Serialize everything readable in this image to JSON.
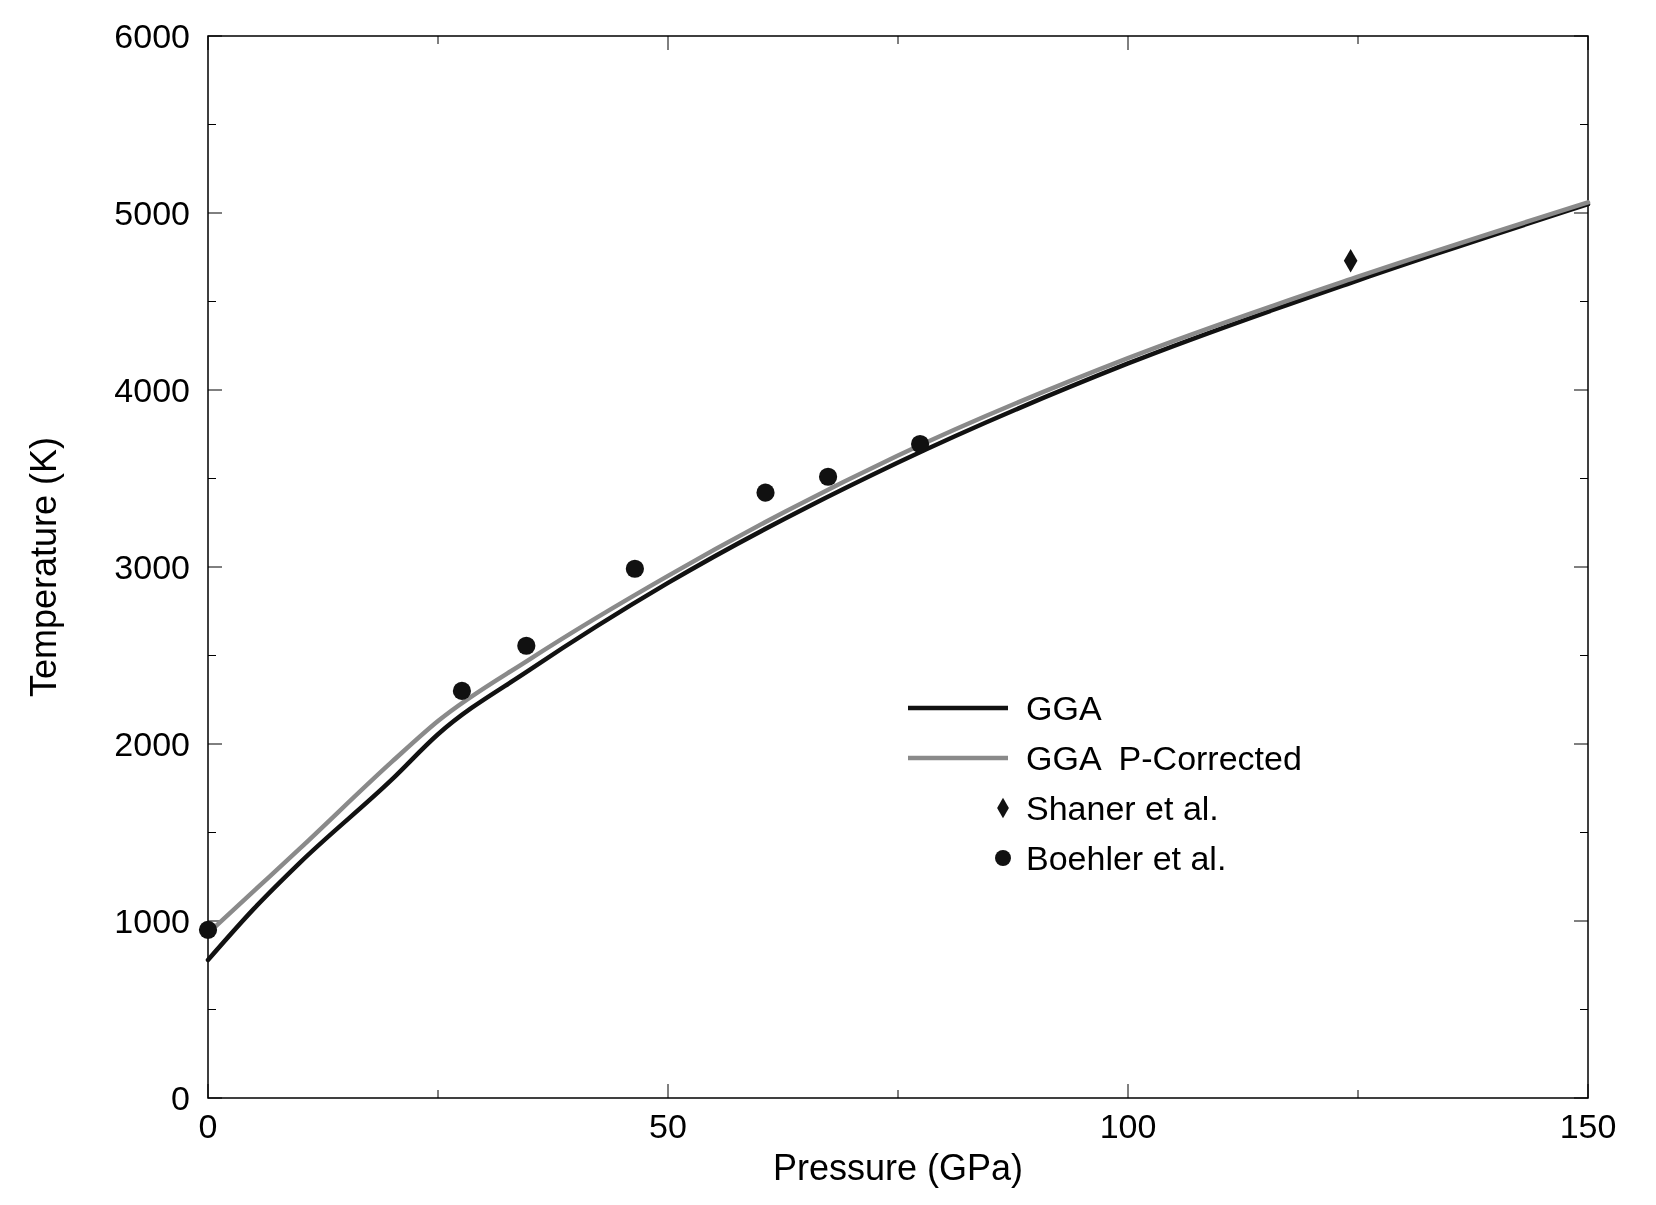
{
  "chart_data": {
    "type": "line",
    "xlabel": "Pressure (GPa)",
    "ylabel": "Temperature (K)",
    "xlim": [
      0,
      150
    ],
    "ylim": [
      0,
      6000
    ],
    "xticks": [
      0,
      {
        "value": 25,
        "label": null
      },
      50,
      {
        "value": 75,
        "label": null
      },
      100,
      {
        "value": 125,
        "label": null
      },
      150
    ],
    "yticks": [
      0,
      {
        "value": 500,
        "label": null
      },
      1000,
      {
        "value": 1500,
        "label": null
      },
      2000,
      {
        "value": 2500,
        "label": null
      },
      3000,
      {
        "value": 3500,
        "label": null
      },
      4000,
      {
        "value": 4500,
        "label": null
      },
      5000,
      {
        "value": 5500,
        "label": null
      },
      6000
    ],
    "grid": false,
    "legend": "right",
    "series": [
      {
        "name": "GGA",
        "color": "#111111",
        "x": [
          0,
          5,
          10,
          20,
          25,
          35,
          50,
          75,
          100,
          125,
          150
        ],
        "values": [
          780,
          1070,
          1330,
          1800,
          2055,
          2420,
          2910,
          3590,
          4150,
          4620,
          5050
        ]
      },
      {
        "name": "GGA  P-Corrected",
        "color": "#8a8a8a",
        "x": [
          0,
          5,
          10,
          20,
          25,
          35,
          50,
          75,
          100,
          125,
          150
        ],
        "values": [
          930,
          1170,
          1410,
          1900,
          2130,
          2480,
          2950,
          3630,
          4180,
          4640,
          5060
        ]
      },
      {
        "name": "Shaner et al.",
        "type": "scatter",
        "marker": "diamond",
        "color": "#111111",
        "x": [
          124.2
        ],
        "values": [
          4730
        ]
      },
      {
        "name": "Boehler et al.",
        "type": "scatter",
        "marker": "circle",
        "color": "#111111",
        "x": [
          0,
          27.6,
          34.6,
          46.4,
          60.6,
          67.4,
          77.4
        ],
        "values": [
          950,
          2300,
          2555,
          2990,
          3420,
          3510,
          3695
        ]
      }
    ]
  }
}
